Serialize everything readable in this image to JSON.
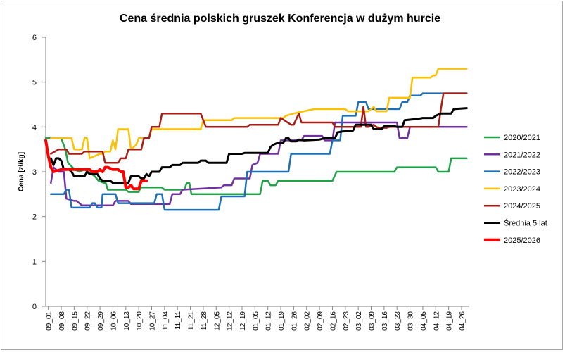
{
  "chart_data": {
    "type": "line",
    "title": "Cena średnia polskich gruszek Konferencja w dużym hurcie",
    "xlabel": "",
    "ylabel": "Cena [zł/kg]",
    "ylim": [
      0,
      6
    ],
    "yticks": [
      "0",
      "1",
      "2",
      "3",
      "4",
      "5",
      "6"
    ],
    "grid": false,
    "legend": "right",
    "categories": [
      "09_01",
      "09_08",
      "09_15",
      "09_22",
      "09_29",
      "10_06",
      "10_13",
      "10_20",
      "10_27",
      "11_04",
      "11_11",
      "11_21",
      "11_28",
      "12_05",
      "12_12",
      "12_19",
      "01_05",
      "01_12",
      "01_19",
      "01_26",
      "02_02",
      "02_09",
      "02_16",
      "02_23",
      "03_02",
      "03_09",
      "03_16",
      "03_23",
      "03_30",
      "04_05",
      "04_12",
      "04_19",
      "04_26"
    ],
    "series": [
      {
        "name": "2020/2021",
        "color": "#21a248",
        "width": 2.5,
        "points": [
          [
            0,
            3.75
          ],
          [
            3,
            3.75
          ],
          [
            3.8,
            3.5
          ],
          [
            4.3,
            3.2
          ],
          [
            5.6,
            3.05
          ],
          [
            6.5,
            3.0
          ],
          [
            7.5,
            3.05
          ],
          [
            8.2,
            3.0
          ],
          [
            9.5,
            2.9
          ],
          [
            10.2,
            2.8
          ],
          [
            11.3,
            2.75
          ],
          [
            11.6,
            2.75
          ],
          [
            12.0,
            2.6
          ],
          [
            15.5,
            2.6
          ],
          [
            16.0,
            2.55
          ],
          [
            18.0,
            2.55
          ],
          [
            18.4,
            2.65
          ],
          [
            22.5,
            2.65
          ],
          [
            23.0,
            2.6
          ],
          [
            26.8,
            2.6
          ],
          [
            27.3,
            2.75
          ],
          [
            27.8,
            2.75
          ],
          [
            28.2,
            2.5
          ],
          [
            41.5,
            2.5
          ],
          [
            42.0,
            2.8
          ],
          [
            43.0,
            2.8
          ],
          [
            43.5,
            2.7
          ],
          [
            44.5,
            2.7
          ],
          [
            45.0,
            2.8
          ],
          [
            55.5,
            2.8
          ],
          [
            56.3,
            3.0
          ],
          [
            67.5,
            3.0
          ],
          [
            68.0,
            3.1
          ],
          [
            75.5,
            3.1
          ],
          [
            76.0,
            3.0
          ],
          [
            78.0,
            3.0
          ],
          [
            78.5,
            3.3
          ],
          [
            81.5,
            3.3
          ]
        ]
      },
      {
        "name": "2021/2022",
        "color": "#7030a0",
        "width": 2.5,
        "points": [
          [
            1,
            2.75
          ],
          [
            1.5,
            3.1
          ],
          [
            2.5,
            3.0
          ],
          [
            3.5,
            3.0
          ],
          [
            4.0,
            2.4
          ],
          [
            5.5,
            2.35
          ],
          [
            6.0,
            2.35
          ],
          [
            7.0,
            2.25
          ],
          [
            13.0,
            2.25
          ],
          [
            13.5,
            2.35
          ],
          [
            16.0,
            2.35
          ],
          [
            16.5,
            2.28
          ],
          [
            24.0,
            2.28
          ],
          [
            24.5,
            2.5
          ],
          [
            26.0,
            2.5
          ],
          [
            26.5,
            2.6
          ],
          [
            34.0,
            2.65
          ],
          [
            34.5,
            2.7
          ],
          [
            36.0,
            2.7
          ],
          [
            36.5,
            2.85
          ],
          [
            39.5,
            2.85
          ],
          [
            40.0,
            3.15
          ],
          [
            41.0,
            3.2
          ],
          [
            41.5,
            3.4
          ],
          [
            45.0,
            3.4
          ],
          [
            45.5,
            3.7
          ],
          [
            49.5,
            3.7
          ],
          [
            50.0,
            3.8
          ],
          [
            53.5,
            3.8
          ],
          [
            54.0,
            3.7
          ],
          [
            55.5,
            3.7
          ],
          [
            56.0,
            4.1
          ],
          [
            68.0,
            4.1
          ],
          [
            68.5,
            3.75
          ],
          [
            70.0,
            3.75
          ],
          [
            70.5,
            4.0
          ],
          [
            81.5,
            4.0
          ]
        ]
      },
      {
        "name": "2022/2023",
        "color": "#1f6fb5",
        "width": 2.5,
        "points": [
          [
            1,
            2.5
          ],
          [
            3.5,
            2.5
          ],
          [
            4.0,
            2.6
          ],
          [
            4.5,
            2.6
          ],
          [
            5.0,
            2.2
          ],
          [
            8.5,
            2.2
          ],
          [
            9.0,
            2.3
          ],
          [
            9.5,
            2.3
          ],
          [
            10.0,
            2.2
          ],
          [
            10.8,
            2.2
          ],
          [
            11.0,
            2.5
          ],
          [
            13.5,
            2.5
          ],
          [
            14.0,
            2.3
          ],
          [
            21.0,
            2.3
          ],
          [
            21.5,
            2.5
          ],
          [
            22.5,
            2.5
          ],
          [
            23.0,
            2.15
          ],
          [
            33.5,
            2.15
          ],
          [
            34.0,
            2.45
          ],
          [
            38.5,
            2.45
          ],
          [
            39.0,
            3.0
          ],
          [
            47.0,
            3.0
          ],
          [
            47.5,
            3.4
          ],
          [
            55.0,
            3.4
          ],
          [
            55.5,
            3.7
          ],
          [
            57.0,
            3.7
          ],
          [
            57.5,
            4.25
          ],
          [
            60.0,
            4.25
          ],
          [
            60.5,
            4.55
          ],
          [
            62.0,
            4.55
          ],
          [
            62.5,
            4.4
          ],
          [
            68.5,
            4.4
          ],
          [
            69.0,
            4.55
          ],
          [
            70.0,
            4.55
          ],
          [
            70.5,
            4.7
          ],
          [
            72.5,
            4.7
          ],
          [
            73.0,
            4.75
          ],
          [
            81.5,
            4.75
          ]
        ]
      },
      {
        "name": "2023/2024",
        "color": "#ffc000",
        "width": 2.5,
        "points": [
          [
            1,
            3.75
          ],
          [
            5,
            3.75
          ],
          [
            5.5,
            3.5
          ],
          [
            7.0,
            3.5
          ],
          [
            7.5,
            3.75
          ],
          [
            8.0,
            3.75
          ],
          [
            8.5,
            3.3
          ],
          [
            10.5,
            3.4
          ],
          [
            11.0,
            3.4
          ],
          [
            11.5,
            3.45
          ],
          [
            12.5,
            3.45
          ],
          [
            13.0,
            3.7
          ],
          [
            13.5,
            3.5
          ],
          [
            14.0,
            3.95
          ],
          [
            16.0,
            3.95
          ],
          [
            16.5,
            3.5
          ],
          [
            17.5,
            3.6
          ],
          [
            18.0,
            3.75
          ],
          [
            20.0,
            3.75
          ],
          [
            20.5,
            3.95
          ],
          [
            30.0,
            3.95
          ],
          [
            30.5,
            4.15
          ],
          [
            36.0,
            4.15
          ],
          [
            36.5,
            4.2
          ],
          [
            46.0,
            4.2
          ],
          [
            46.5,
            4.25
          ],
          [
            48.0,
            4.3
          ],
          [
            52.0,
            4.4
          ],
          [
            58.0,
            4.4
          ],
          [
            58.5,
            4.35
          ],
          [
            62.5,
            4.35
          ],
          [
            63.0,
            4.4
          ],
          [
            63.5,
            4.45
          ],
          [
            64.0,
            4.35
          ],
          [
            66.0,
            4.35
          ],
          [
            66.5,
            4.65
          ],
          [
            70.5,
            4.65
          ],
          [
            71.0,
            5.1
          ],
          [
            74.5,
            5.1
          ],
          [
            75.0,
            5.15
          ],
          [
            75.5,
            5.15
          ],
          [
            76.0,
            5.3
          ],
          [
            81.5,
            5.3
          ]
        ]
      },
      {
        "name": "2024/2025",
        "color": "#a61e16",
        "width": 2.5,
        "points": [
          [
            1,
            3.4
          ],
          [
            2.5,
            3.5
          ],
          [
            4.0,
            3.5
          ],
          [
            4.5,
            3.4
          ],
          [
            7.0,
            3.4
          ],
          [
            7.5,
            3.45
          ],
          [
            11.0,
            3.45
          ],
          [
            11.5,
            3.2
          ],
          [
            14.0,
            3.2
          ],
          [
            14.5,
            3.3
          ],
          [
            15.5,
            3.3
          ],
          [
            16.0,
            3.5
          ],
          [
            18.5,
            3.5
          ],
          [
            19.0,
            3.75
          ],
          [
            20.0,
            3.75
          ],
          [
            20.5,
            4.0
          ],
          [
            22.0,
            4.0
          ],
          [
            22.5,
            4.3
          ],
          [
            30.0,
            4.3
          ],
          [
            30.5,
            4.15
          ],
          [
            31.0,
            4.0
          ],
          [
            39.0,
            4.0
          ],
          [
            39.5,
            4.05
          ],
          [
            45.0,
            4.05
          ],
          [
            45.5,
            4.2
          ],
          [
            47.5,
            4.05
          ],
          [
            48.0,
            4.05
          ],
          [
            49.0,
            4.3
          ],
          [
            49.5,
            4.1
          ],
          [
            55.5,
            4.1
          ],
          [
            56.0,
            4.0
          ],
          [
            61.0,
            4.0
          ],
          [
            61.5,
            4.45
          ],
          [
            62.0,
            4.0
          ],
          [
            62.5,
            4.0
          ],
          [
            63.5,
            4.05
          ],
          [
            64.0,
            4.0
          ],
          [
            64.5,
            3.98
          ],
          [
            66.0,
            3.98
          ],
          [
            66.5,
            4.0
          ],
          [
            76.0,
            4.0
          ],
          [
            76.5,
            4.4
          ],
          [
            77.0,
            4.75
          ],
          [
            81.5,
            4.75
          ]
        ]
      },
      {
        "name": "Średnia 5 lat",
        "color": "#000000",
        "width": 3,
        "points": [
          [
            1,
            3.3
          ],
          [
            1.5,
            3.15
          ],
          [
            2.0,
            3.3
          ],
          [
            2.5,
            3.3
          ],
          [
            3.0,
            3.25
          ],
          [
            3.5,
            3.05
          ],
          [
            4.5,
            3.05
          ],
          [
            5.0,
            3.0
          ],
          [
            5.5,
            2.9
          ],
          [
            7.5,
            2.9
          ],
          [
            8.0,
            3.0
          ],
          [
            8.5,
            2.95
          ],
          [
            10.0,
            2.95
          ],
          [
            10.5,
            2.85
          ],
          [
            11.0,
            2.8
          ],
          [
            12.5,
            2.8
          ],
          [
            13.0,
            2.75
          ],
          [
            16.0,
            2.75
          ],
          [
            16.5,
            2.9
          ],
          [
            18.0,
            2.9
          ],
          [
            18.5,
            2.85
          ],
          [
            19.0,
            2.85
          ],
          [
            19.5,
            2.95
          ],
          [
            20.0,
            2.9
          ],
          [
            20.5,
            3.0
          ],
          [
            22.0,
            3.0
          ],
          [
            22.5,
            3.1
          ],
          [
            24.0,
            3.1
          ],
          [
            24.5,
            3.15
          ],
          [
            26.0,
            3.15
          ],
          [
            26.5,
            3.2
          ],
          [
            29.5,
            3.2
          ],
          [
            30.0,
            3.25
          ],
          [
            31.0,
            3.25
          ],
          [
            31.5,
            3.2
          ],
          [
            35.0,
            3.2
          ],
          [
            35.5,
            3.4
          ],
          [
            38.0,
            3.4
          ],
          [
            38.5,
            3.42
          ],
          [
            43.0,
            3.42
          ],
          [
            43.5,
            3.55
          ],
          [
            44.0,
            3.6
          ],
          [
            45.0,
            3.65
          ],
          [
            46.0,
            3.65
          ],
          [
            46.5,
            3.75
          ],
          [
            47.0,
            3.75
          ],
          [
            47.5,
            3.68
          ],
          [
            48.5,
            3.68
          ],
          [
            49.0,
            3.72
          ],
          [
            50.0,
            3.7
          ],
          [
            53.0,
            3.72
          ],
          [
            54.0,
            3.75
          ],
          [
            56.0,
            3.75
          ],
          [
            56.5,
            3.88
          ],
          [
            57.5,
            3.9
          ],
          [
            59.5,
            3.92
          ],
          [
            60.0,
            4.05
          ],
          [
            63.0,
            4.05
          ],
          [
            63.5,
            3.95
          ],
          [
            65.0,
            3.95
          ],
          [
            65.5,
            4.02
          ],
          [
            67.5,
            4.02
          ],
          [
            68.0,
            4.0
          ],
          [
            69.0,
            4.0
          ],
          [
            69.5,
            4.15
          ],
          [
            72.0,
            4.18
          ],
          [
            73.0,
            4.2
          ],
          [
            75.0,
            4.2
          ],
          [
            75.5,
            4.25
          ],
          [
            76.5,
            4.3
          ],
          [
            78.5,
            4.3
          ],
          [
            79.0,
            4.4
          ],
          [
            81.5,
            4.42
          ]
        ]
      },
      {
        "name": "2025/2026",
        "color": "#ff0000",
        "width": 4,
        "points": [
          [
            0,
            3.7
          ],
          [
            0.5,
            3.35
          ],
          [
            1.0,
            3.1
          ],
          [
            1.5,
            3.0
          ],
          [
            3.0,
            3.05
          ],
          [
            8.5,
            3.05
          ],
          [
            9.0,
            3.0
          ],
          [
            10.0,
            3.0
          ],
          [
            10.5,
            3.05
          ],
          [
            11.0,
            3.0
          ],
          [
            11.5,
            3.1
          ],
          [
            12.0,
            3.1
          ],
          [
            13.0,
            3.05
          ],
          [
            14.0,
            3.05
          ],
          [
            14.5,
            3.0
          ],
          [
            15.0,
            3.0
          ],
          [
            15.5,
            2.65
          ],
          [
            16.0,
            2.65
          ],
          [
            16.5,
            2.7
          ],
          [
            17.0,
            2.62
          ],
          [
            18.0,
            2.62
          ],
          [
            18.5,
            2.8
          ],
          [
            19.0,
            2.8
          ],
          [
            19.5,
            2.8
          ]
        ]
      }
    ]
  }
}
